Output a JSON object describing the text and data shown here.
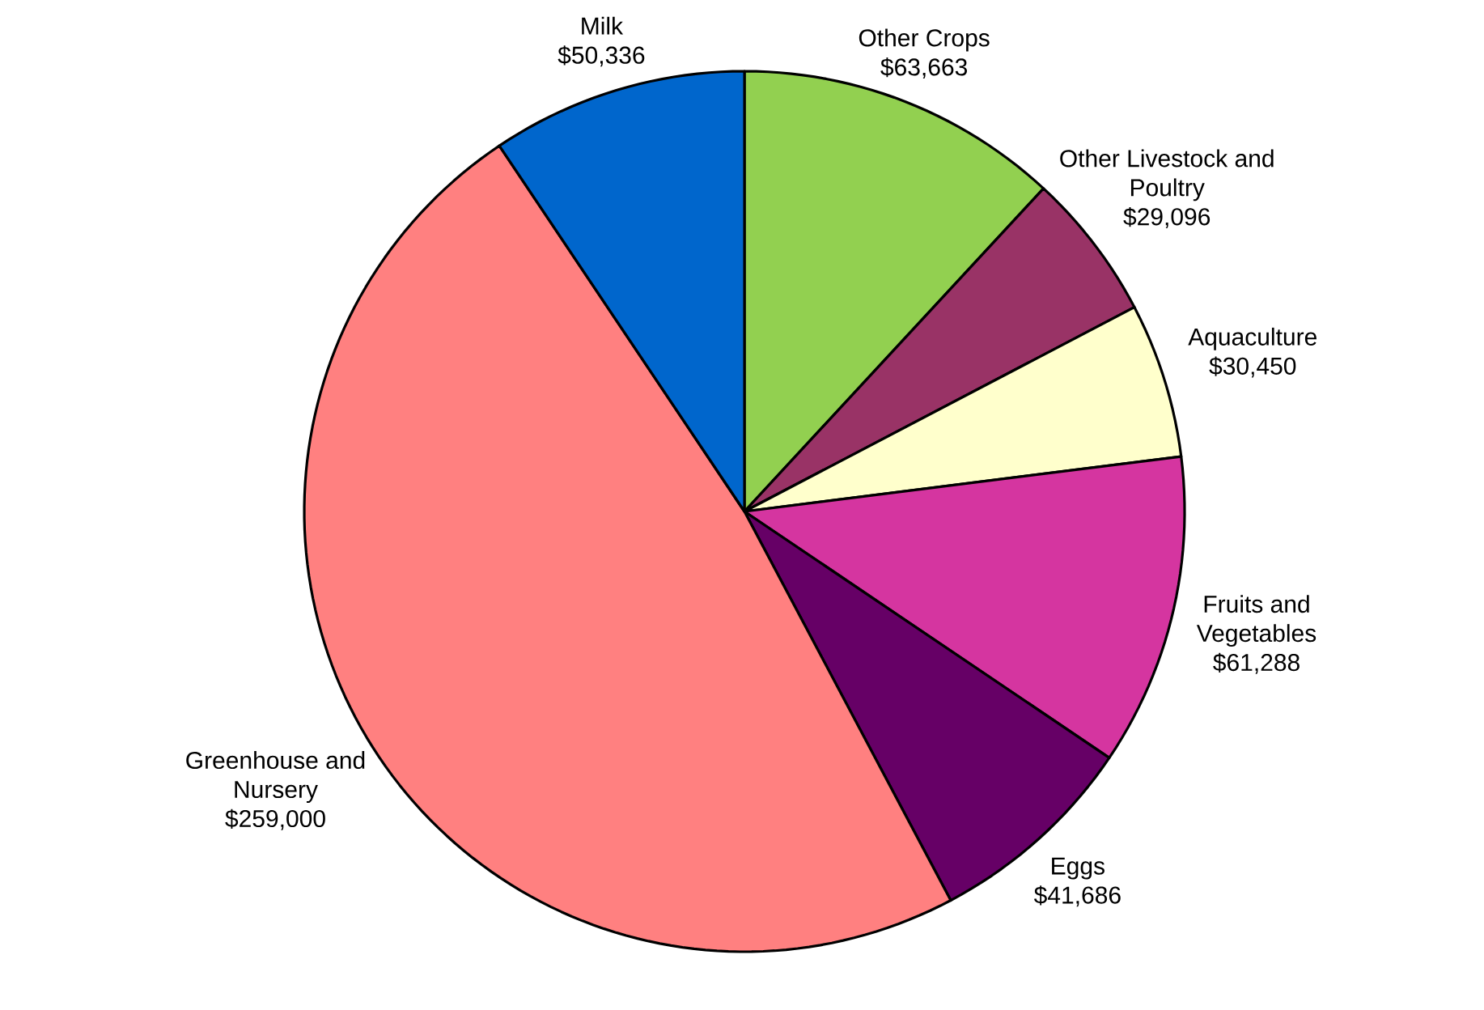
{
  "chart_data": {
    "type": "pie",
    "categories": [
      "Other Crops",
      "Other Livestock and Poultry",
      "Aquaculture",
      "Fruits and Vegetables",
      "Eggs",
      "Greenhouse and Nursery",
      "Milk"
    ],
    "values": [
      63663,
      29096,
      30450,
      61288,
      41686,
      259000,
      50336
    ],
    "value_labels": [
      "$63,663",
      "$29,096",
      "$30,450",
      "$61,288",
      "$41,686",
      "$259,000",
      "$50,336"
    ],
    "colors": [
      "#92d050",
      "#993366",
      "#ffffcc",
      "#d535a0",
      "#660066",
      "#ff8080",
      "#0066cc"
    ]
  }
}
